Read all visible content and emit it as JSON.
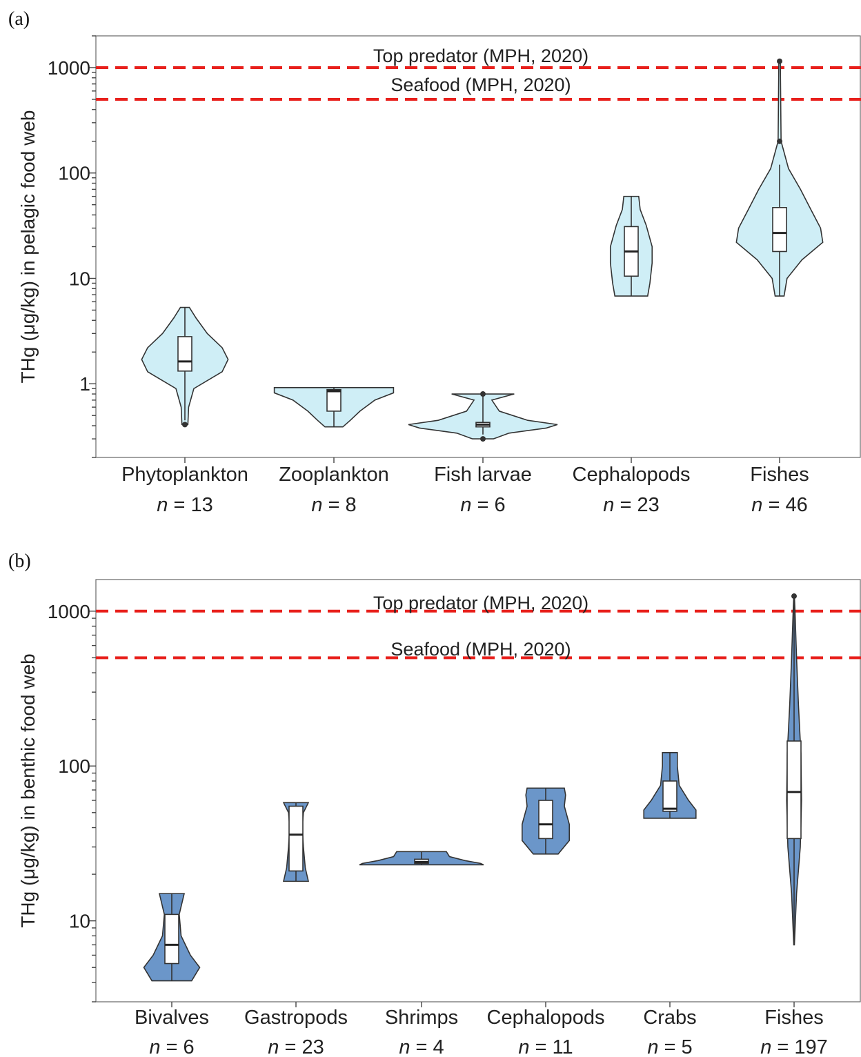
{
  "chart_data": [
    {
      "type": "violin",
      "panel_label": "(a)",
      "ylabel": "THg (μg/kg) in pelagic food web",
      "yscale": "log",
      "ylim": [
        0.2,
        2000
      ],
      "ytick_labels": [
        "1",
        "10",
        "100",
        "1000"
      ],
      "yticks": [
        1,
        10,
        100,
        1000
      ],
      "fill_color": "#cfeef6",
      "reference_lines": [
        {
          "value": 1000,
          "label": "Top predator (MPH, 2020)",
          "color": "#e8201c"
        },
        {
          "value": 500,
          "label": "Seafood (MPH, 2020)",
          "color": "#e8201c"
        }
      ],
      "categories": [
        "Phytoplankton",
        "Zooplankton",
        "Fish larvae",
        "Cephalopods",
        "Fishes"
      ],
      "n_labels": [
        "13",
        "8",
        "6",
        "23",
        "46"
      ],
      "series": [
        {
          "min": 0.41,
          "max": 5.3,
          "q1": 1.32,
          "median": 1.63,
          "q3": 2.8,
          "whisker_low": 0.45,
          "whisker_high": 5.3,
          "outliers": [
            0.41
          ],
          "density": [
            [
              0.41,
              0.04
            ],
            [
              0.6,
              0.05
            ],
            [
              0.9,
              0.12
            ],
            [
              1.3,
              0.5
            ],
            [
              1.7,
              0.58
            ],
            [
              2.2,
              0.5
            ],
            [
              3.0,
              0.3
            ],
            [
              4.2,
              0.15
            ],
            [
              5.3,
              0.06
            ]
          ]
        },
        {
          "min": 0.39,
          "max": 0.92,
          "q1": 0.55,
          "median": 0.85,
          "q3": 0.88,
          "whisker_low": 0.39,
          "whisker_high": 0.92,
          "outliers": [],
          "density": [
            [
              0.39,
              0.12
            ],
            [
              0.45,
              0.22
            ],
            [
              0.55,
              0.35
            ],
            [
              0.7,
              0.55
            ],
            [
              0.82,
              0.8
            ],
            [
              0.92,
              0.8
            ]
          ]
        },
        {
          "min": 0.3,
          "max": 0.8,
          "q1": 0.39,
          "median": 0.41,
          "q3": 0.43,
          "whisker_low": 0.33,
          "whisker_high": 0.78,
          "outliers": [
            0.3,
            0.8
          ],
          "density": [
            [
              0.3,
              0.14
            ],
            [
              0.34,
              0.35
            ],
            [
              0.38,
              0.85
            ],
            [
              0.41,
              1.0
            ],
            [
              0.45,
              0.6
            ],
            [
              0.55,
              0.22
            ],
            [
              0.7,
              0.12
            ],
            [
              0.8,
              0.42
            ]
          ]
        },
        {
          "min": 6.8,
          "max": 60,
          "q1": 10.5,
          "median": 18,
          "q3": 31,
          "whisker_low": 6.8,
          "whisker_high": 60,
          "outliers": [],
          "density": [
            [
              6.8,
              0.22
            ],
            [
              9,
              0.25
            ],
            [
              14,
              0.28
            ],
            [
              20,
              0.28
            ],
            [
              32,
              0.2
            ],
            [
              45,
              0.12
            ],
            [
              60,
              0.1
            ]
          ]
        },
        {
          "min": 6.8,
          "max": 1150,
          "q1": 18,
          "median": 27,
          "q3": 47,
          "whisker_low": 6.8,
          "whisker_high": 120,
          "outliers": [
            200,
            1150
          ],
          "density": [
            [
              6.8,
              0.06
            ],
            [
              10,
              0.1
            ],
            [
              15,
              0.3
            ],
            [
              22,
              0.58
            ],
            [
              30,
              0.55
            ],
            [
              45,
              0.42
            ],
            [
              70,
              0.28
            ],
            [
              110,
              0.12
            ],
            [
              200,
              0.02
            ],
            [
              1150,
              0.01
            ]
          ]
        }
      ]
    },
    {
      "type": "violin",
      "panel_label": "(b)",
      "ylabel": "THg (μg/kg) in benthic food web",
      "yscale": "log",
      "ylim": [
        3,
        1600
      ],
      "ytick_labels": [
        "10",
        "100",
        "1000"
      ],
      "yticks": [
        10,
        100,
        1000
      ],
      "fill_color": "#6b96c9",
      "reference_lines": [
        {
          "value": 1000,
          "label": "Top predator (MPH, 2020)",
          "color": "#e8201c"
        },
        {
          "value": 500,
          "label": "Seafood (MPH, 2020)",
          "color": "#e8201c"
        }
      ],
      "categories": [
        "Bivalves",
        "Gastropods",
        "Shrimps",
        "Cephalopods",
        "Crabs",
        "Fishes"
      ],
      "n_labels": [
        "6",
        "23",
        "4",
        "11",
        "5",
        "197"
      ],
      "series": [
        {
          "min": 4.1,
          "max": 15,
          "q1": 5.3,
          "median": 7,
          "q3": 11,
          "whisker_low": 4.1,
          "whisker_high": 15,
          "outliers": [],
          "density": [
            [
              4.1,
              0.32
            ],
            [
              5,
              0.45
            ],
            [
              6,
              0.3
            ],
            [
              8,
              0.15
            ],
            [
              11,
              0.12
            ],
            [
              15,
              0.2
            ]
          ]
        },
        {
          "min": 18,
          "max": 58,
          "q1": 21,
          "median": 36,
          "q3": 55,
          "whisker_low": 18,
          "whisker_high": 58,
          "outliers": [],
          "density": [
            [
              18,
              0.2
            ],
            [
              22,
              0.15
            ],
            [
              30,
              0.12
            ],
            [
              40,
              0.1
            ],
            [
              50,
              0.12
            ],
            [
              58,
              0.2
            ]
          ]
        },
        {
          "min": 23,
          "max": 28,
          "q1": 23.5,
          "median": 24,
          "q3": 25,
          "whisker_low": 23,
          "whisker_high": 28,
          "outliers": [],
          "density": [
            [
              23,
              1.0
            ],
            [
              23.5,
              0.95
            ],
            [
              24.5,
              0.7
            ],
            [
              26,
              0.45
            ],
            [
              28,
              0.4
            ]
          ]
        },
        {
          "min": 27,
          "max": 72,
          "q1": 34,
          "median": 42,
          "q3": 60,
          "whisker_low": 27,
          "whisker_high": 72,
          "outliers": [],
          "density": [
            [
              27,
              0.2
            ],
            [
              33,
              0.38
            ],
            [
              42,
              0.38
            ],
            [
              55,
              0.3
            ],
            [
              65,
              0.32
            ],
            [
              72,
              0.3
            ]
          ]
        },
        {
          "min": 46,
          "max": 122,
          "q1": 51,
          "median": 53,
          "q3": 80,
          "whisker_low": 46,
          "whisker_high": 122,
          "outliers": [],
          "density": [
            [
              46,
              0.42
            ],
            [
              52,
              0.42
            ],
            [
              60,
              0.3
            ],
            [
              75,
              0.15
            ],
            [
              100,
              0.12
            ],
            [
              122,
              0.12
            ]
          ]
        },
        {
          "min": 7,
          "max": 1250,
          "q1": 34,
          "median": 68,
          "q3": 145,
          "whisker_low": 7,
          "whisker_high": 1250,
          "outliers": [
            1250
          ],
          "density": [
            [
              7,
              0.005
            ],
            [
              15,
              0.04
            ],
            [
              30,
              0.1
            ],
            [
              60,
              0.12
            ],
            [
              120,
              0.11
            ],
            [
              250,
              0.07
            ],
            [
              500,
              0.04
            ],
            [
              1000,
              0.015
            ],
            [
              1250,
              0.005
            ]
          ]
        }
      ]
    }
  ]
}
